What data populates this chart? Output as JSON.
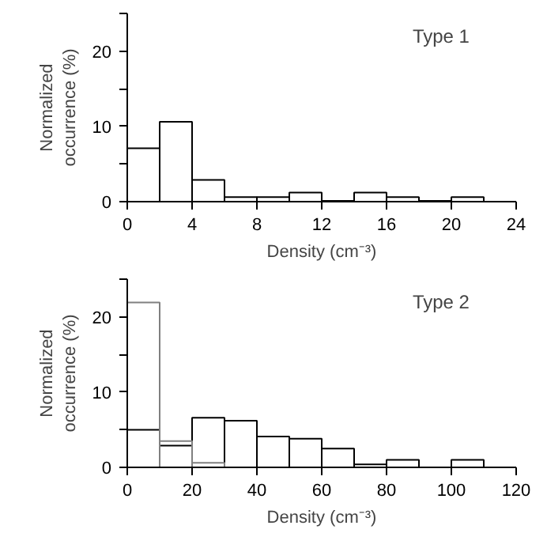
{
  "chart_data": [
    {
      "type": "histogram",
      "xlabel": "Density (cm⁻³)",
      "ylabel": "Normalized occurrence (%)",
      "annotations": [
        "Type 1"
      ],
      "bins": [
        0,
        2,
        4,
        6,
        8,
        10,
        12,
        14,
        16,
        18,
        20,
        22
      ],
      "series": [
        {
          "color": "#000000",
          "values": [
            7.1,
            10.6,
            2.9,
            0.6,
            0.6,
            1.2,
            0.1,
            1.2,
            0.6,
            0.1,
            0.6
          ]
        }
      ],
      "xlim": [
        0,
        24
      ],
      "xticks": [
        0,
        4,
        8,
        12,
        16,
        20,
        24
      ],
      "ylim": [
        0,
        25
      ],
      "yticks": [
        0,
        {
          "value": 5,
          "label": null
        },
        10,
        {
          "value": 15,
          "label": null
        },
        20,
        {
          "value": 25,
          "label": null
        }
      ],
      "grid": false
    },
    {
      "type": "histogram",
      "xlabel": "Density (cm⁻³)",
      "ylabel": "Normalized occurrence (%)",
      "annotations": [
        "Type 2"
      ],
      "bins": [
        0,
        10,
        20,
        30,
        40,
        50,
        60,
        70,
        80,
        90,
        100,
        110
      ],
      "series": [
        {
          "color": "#808080",
          "values": [
            21.9,
            3.5,
            0.6,
            null,
            null,
            null,
            null,
            null,
            null,
            null,
            null
          ]
        },
        {
          "color": "#000000",
          "values": [
            5.0,
            2.9,
            6.6,
            6.2,
            4.1,
            3.8,
            2.5,
            0.4,
            1.0,
            0,
            1.0
          ]
        }
      ],
      "xlim": [
        0,
        120
      ],
      "xticks": [
        0,
        20,
        40,
        60,
        80,
        100,
        120
      ],
      "ylim": [
        0,
        25
      ],
      "yticks": [
        0,
        {
          "value": 5,
          "label": null
        },
        10,
        {
          "value": 15,
          "label": null
        },
        20,
        {
          "value": 25,
          "label": null
        }
      ],
      "grid": false
    }
  ]
}
